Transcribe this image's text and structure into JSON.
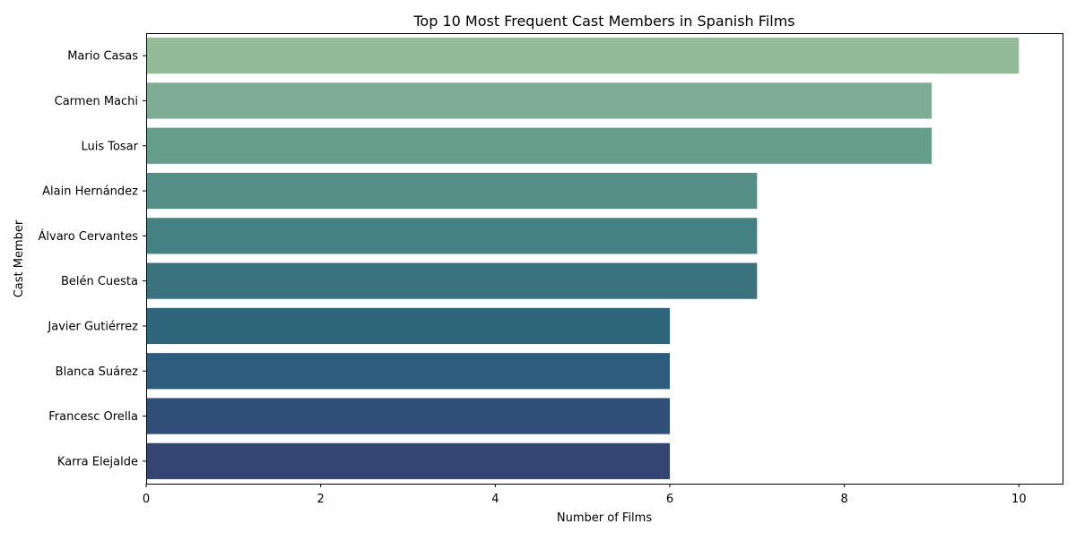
{
  "chart_data": {
    "type": "bar",
    "orientation": "horizontal",
    "title": "Top 10 Most Frequent Cast Members in Spanish Films",
    "xlabel": "Number of Films",
    "ylabel": "Cast Member",
    "xlim": [
      0,
      10.5
    ],
    "xticks": [
      "0",
      "2",
      "4",
      "6",
      "8",
      "10"
    ],
    "xtick_values": [
      0,
      2,
      4,
      6,
      8,
      10
    ],
    "grid": false,
    "categories": [
      "Mario Casas",
      "Carmen Machi",
      "Luis Tosar",
      "Alain Hernández",
      "Álvaro Cervantes",
      "Belén Cuesta",
      "Javier Gutiérrez",
      "Blanca Suárez",
      "Francesc Orella",
      "Karra Elejalde"
    ],
    "values": [
      10,
      9,
      9,
      7,
      7,
      7,
      6,
      6,
      6,
      6
    ],
    "colors": [
      "#94bb98",
      "#7eac94",
      "#659f8c",
      "#568f87",
      "#448182",
      "#3a737e",
      "#30667b",
      "#2d5c7c",
      "#2f4f79",
      "#344573"
    ]
  }
}
